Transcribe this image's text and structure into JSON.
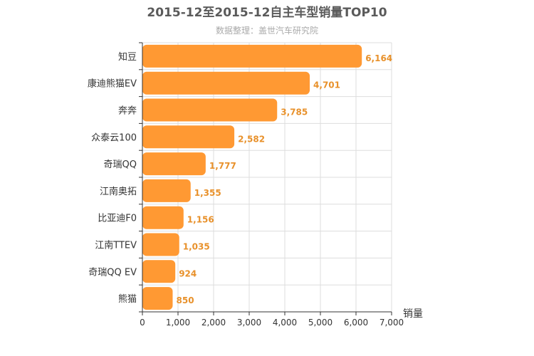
{
  "chart_data": {
    "type": "bar",
    "orientation": "horizontal",
    "title": "2015-12至2015-12自主车型销量TOP10",
    "subtitle": "数据整理：盖世汽车研究院",
    "xlabel": "销量",
    "categories": [
      "知豆",
      "康迪熊猫EV",
      "奔奔",
      "众泰云100",
      "奇瑞QQ",
      "江南奥拓",
      "比亚迪F0",
      "江南TTEV",
      "奇瑞QQ  EV",
      "熊猫"
    ],
    "values": [
      6164,
      4701,
      3785,
      2582,
      1777,
      1355,
      1156,
      1035,
      924,
      850
    ],
    "value_labels": [
      "6,164",
      "4,701",
      "3,785",
      "2,582",
      "1,777",
      "1,355",
      "1,156",
      "1,035",
      "924",
      "850"
    ],
    "xlim": [
      0,
      7000
    ],
    "xticks": [
      0,
      1000,
      2000,
      3000,
      4000,
      5000,
      6000,
      7000
    ],
    "xtick_labels": [
      "0",
      "1,000",
      "2,000",
      "3,000",
      "4,000",
      "5,000",
      "6,000",
      "7,000"
    ],
    "grid": true,
    "colors": {
      "bar": "#ff9933",
      "value_label": "#e8912b",
      "grid": "#dddddd",
      "axis": "#333333"
    }
  }
}
